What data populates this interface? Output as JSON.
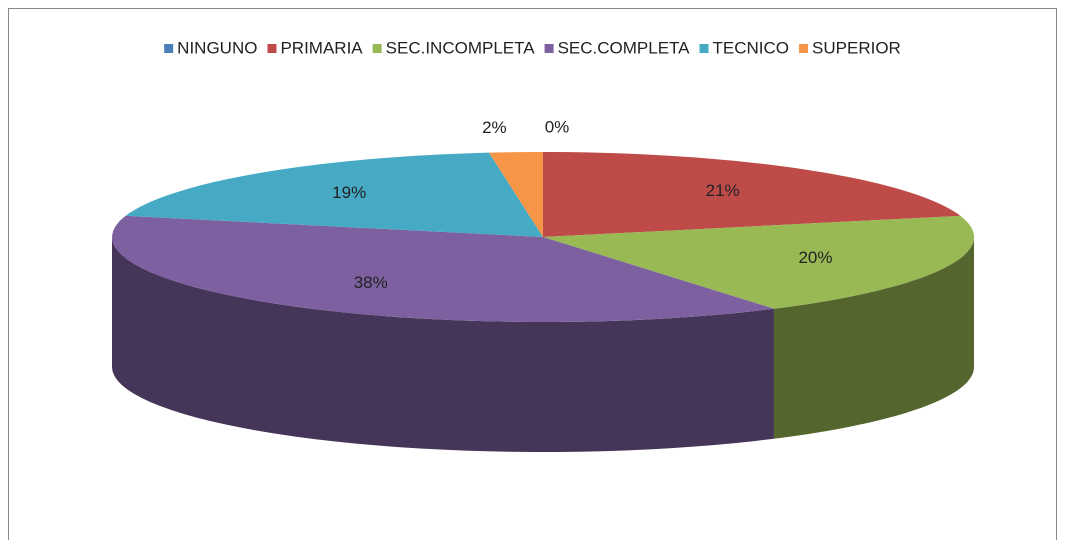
{
  "chart_data": {
    "type": "pie",
    "categories": [
      "NINGUNO",
      "PRIMARIA",
      "SEC.INCOMPLETA",
      "SEC.COMPLETA",
      "TECNICO",
      "SUPERIOR"
    ],
    "values": [
      0,
      21,
      20,
      38,
      19,
      2
    ],
    "value_labels": [
      "0%",
      "21%",
      "20%",
      "38%",
      "19%",
      "2%"
    ],
    "colors": [
      "#4a7ebb",
      "#be4b48",
      "#98b954",
      "#7d60a0",
      "#46aac5",
      "#f79646"
    ],
    "legend": "top"
  }
}
